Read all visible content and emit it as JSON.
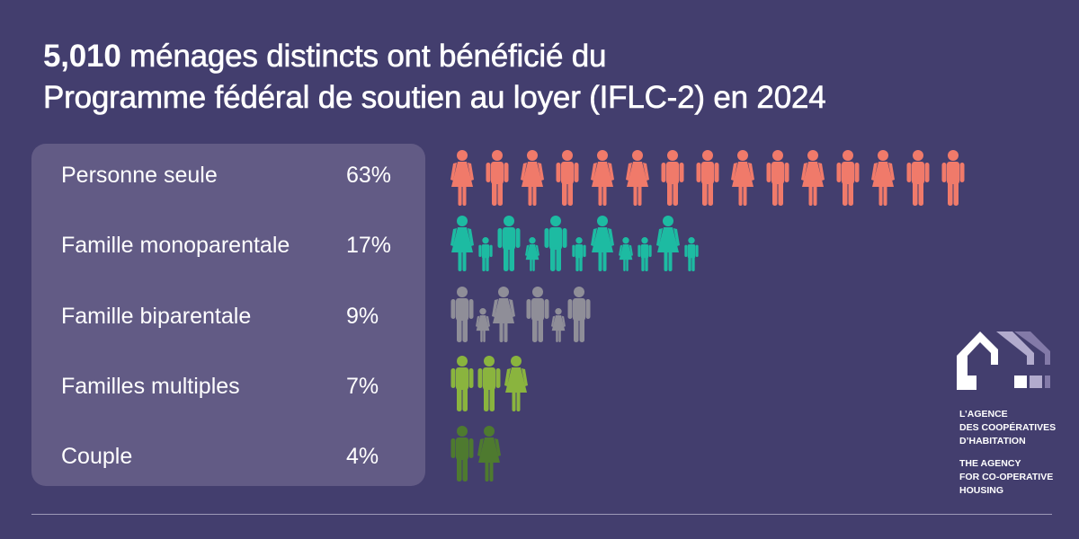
{
  "title": {
    "number": "5,010",
    "line1_rest": " ménages distincts ont bénéficié du",
    "line2": "Programme fédéral de soutien au loyer (IFLC-2) en 2024"
  },
  "chart_data": {
    "type": "pictogram",
    "title": "5,010 ménages distincts ont bénéficié du Programme fédéral de soutien au loyer (IFLC-2) en 2024",
    "categories": [
      "Personne seule",
      "Famille monoparentale",
      "Famille biparentale",
      "Familles multiples",
      "Couple"
    ],
    "values": [
      63,
      17,
      9,
      7,
      4
    ],
    "value_labels": [
      "63%",
      "17%",
      "9%",
      "7%",
      "4%"
    ],
    "unit": "%",
    "rows": [
      {
        "label": "Personne seule",
        "pct": "63%",
        "color": "#f07a6a",
        "gap": 13,
        "figures": [
          "woman",
          "man",
          "woman",
          "man",
          "woman",
          "woman",
          "man",
          "man",
          "woman",
          "man",
          "woman",
          "man",
          "woman",
          "man",
          "man"
        ]
      },
      {
        "label": "Famille monoparentale",
        "pct": "17%",
        "color": "#1dbba2",
        "gap": 5,
        "figures": [
          "woman",
          "boy",
          "man",
          "girl",
          "man",
          "boy",
          "woman",
          "girl",
          "boy",
          "woman",
          "boy"
        ]
      },
      {
        "label": "Famille biparentale",
        "pct": "9%",
        "color": "#8f8e98",
        "gap": 2,
        "figures": [
          "man",
          "girl",
          "woman",
          "spacer",
          "man",
          "girl",
          "man"
        ]
      },
      {
        "label": "Familles multiples",
        "pct": "7%",
        "color": "#8ab43e",
        "gap": 4,
        "figures": [
          "man",
          "man",
          "woman"
        ]
      },
      {
        "label": "Couple",
        "pct": "4%",
        "color": "#4e7a2f",
        "gap": 4,
        "figures": [
          "man",
          "woman"
        ]
      }
    ]
  },
  "logo": {
    "fr_lines": [
      "L’AGENCE",
      "DES COOPÉRATIVES",
      "D’HABITATION"
    ],
    "en_lines": [
      "THE AGENCY",
      "FOR CO-OPERATIVE",
      "HOUSING"
    ]
  },
  "colors": {
    "background": "#433e6e",
    "panel": "#625b85"
  }
}
